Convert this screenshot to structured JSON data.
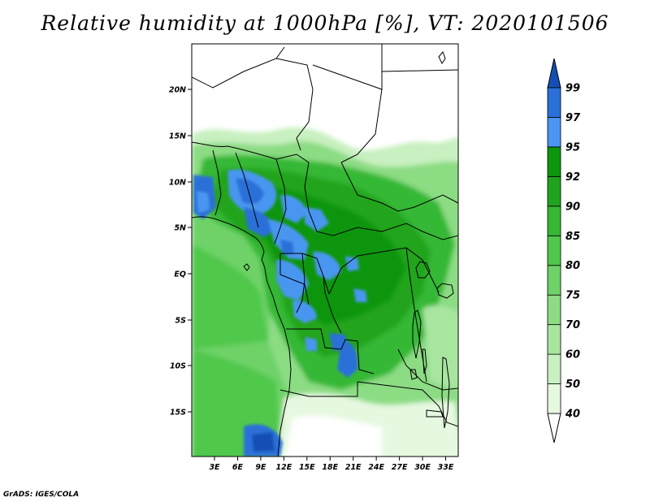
{
  "title": "Relative humidity at 1000hPa [%], VT: 2020101506",
  "credit": "GrADS: IGES/COLA",
  "map": {
    "lat_labels": [
      "20N",
      "15N",
      "10N",
      "5N",
      "EQ",
      "5S",
      "10S",
      "15S"
    ],
    "lon_labels": [
      "3E",
      "6E",
      "9E",
      "12E",
      "15E",
      "18E",
      "21E",
      "24E",
      "27E",
      "30E",
      "33E"
    ]
  },
  "colorbar": {
    "levels": [
      "40",
      "50",
      "60",
      "70",
      "75",
      "80",
      "85",
      "90",
      "92",
      "95",
      "97",
      "99"
    ],
    "colors": {
      "below_40": "#ffffff",
      "40_50": "#e6f8e0",
      "50_60": "#c8f0c0",
      "60_70": "#a8e6a0",
      "70_75": "#8cdc84",
      "75_80": "#6ed268",
      "80_85": "#50c84c",
      "85_90": "#36b834",
      "90_92": "#20a41e",
      "92_95": "#0e960e",
      "95_97": "#4a96f0",
      "97_99": "#2a70d8",
      "above_99": "#1450b4"
    }
  }
}
